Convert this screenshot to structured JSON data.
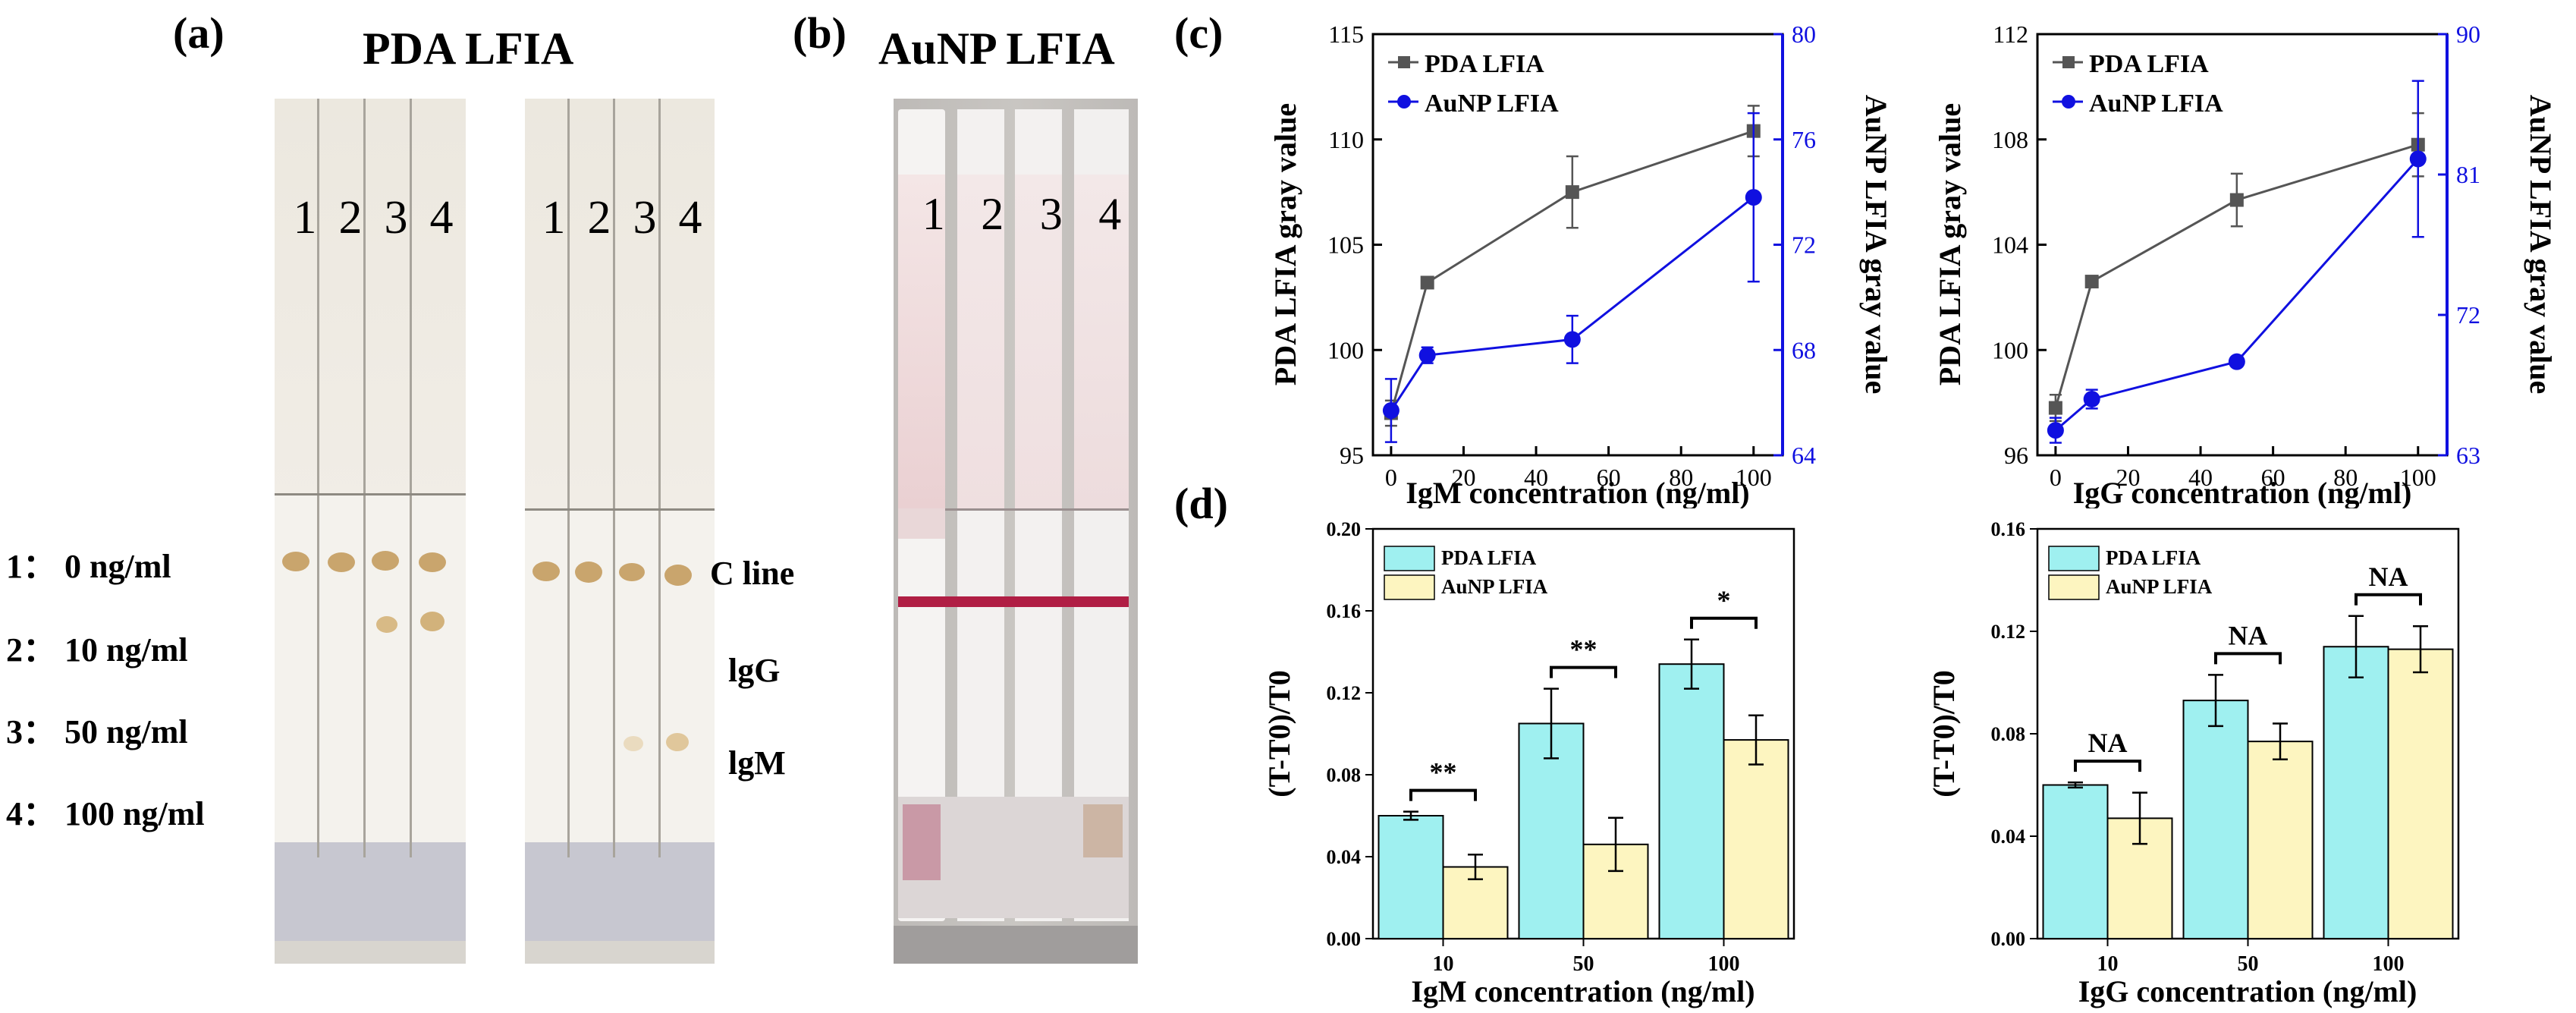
{
  "panel_a": {
    "letter": "(a)",
    "title": "PDA LFIA",
    "strip_numbers_left": [
      "1",
      "2",
      "3",
      "4"
    ],
    "strip_numbers_right": [
      "1",
      "2",
      "3",
      "4"
    ],
    "conc_legend": [
      "1： 0 ng/ml",
      "2： 10 ng/ml",
      "3： 50 ng/ml",
      "4： 100 ng/ml"
    ],
    "line_labels": [
      "C line",
      "lgG",
      "lgM"
    ]
  },
  "panel_b": {
    "letter": "(b)",
    "title": "AuNP LFIA",
    "strip_numbers": [
      "1",
      "2",
      "3",
      "4"
    ]
  },
  "panel_c_letter": "(c)",
  "panel_d_letter": "(d)",
  "chart_data": [
    {
      "id": "c-igm",
      "type": "line",
      "xlabel": "IgM concentration (ng/ml)",
      "ylabel": "PDA LFIA gray value",
      "y2label": "AuNP LFIA gray value",
      "x": [
        0,
        10,
        50,
        100
      ],
      "xlim": [
        -5,
        108
      ],
      "xticks": [
        0,
        20,
        40,
        60,
        80,
        100
      ],
      "ylim": [
        95,
        115
      ],
      "yticks": [
        95,
        100,
        105,
        110,
        115
      ],
      "y2lim": [
        64,
        80
      ],
      "y2ticks": [
        64,
        68,
        72,
        76,
        80
      ],
      "legend": [
        "PDA LFIA",
        "AuNP LFIA"
      ],
      "series": [
        {
          "name": "PDA LFIA",
          "axis": "left",
          "color": "#555555",
          "marker": "square",
          "values": [
            97.0,
            103.2,
            107.5,
            110.4
          ],
          "errors": [
            0.6,
            0.2,
            1.7,
            1.2
          ]
        },
        {
          "name": "AuNP LFIA",
          "axis": "right",
          "color": "#1010e0",
          "marker": "circle",
          "values": [
            65.7,
            67.8,
            68.4,
            73.8
          ],
          "errors": [
            1.2,
            0.3,
            0.9,
            3.2
          ]
        }
      ]
    },
    {
      "id": "c-igg",
      "type": "line",
      "xlabel": "IgG concentration (ng/ml)",
      "ylabel": "PDA LFIA gray value",
      "y2label": "AuNP LFIA gray value",
      "x": [
        0,
        10,
        50,
        100
      ],
      "xlim": [
        -5,
        108
      ],
      "xticks": [
        0,
        20,
        40,
        60,
        80,
        100
      ],
      "ylim": [
        96,
        112
      ],
      "yticks": [
        96,
        100,
        104,
        108,
        112
      ],
      "y2lim": [
        63,
        90
      ],
      "y2ticks": [
        63,
        72,
        81,
        90
      ],
      "legend": [
        "PDA LFIA",
        "AuNP LFIA"
      ],
      "series": [
        {
          "name": "PDA LFIA",
          "axis": "left",
          "color": "#555555",
          "marker": "square",
          "values": [
            97.8,
            102.6,
            105.7,
            107.8
          ],
          "errors": [
            0.5,
            0.2,
            1.0,
            1.2
          ]
        },
        {
          "name": "AuNP LFIA",
          "axis": "right",
          "color": "#1010e0",
          "marker": "circle",
          "values": [
            64.6,
            66.6,
            69.0,
            82.0
          ],
          "errors": [
            0.8,
            0.6,
            0.3,
            5.0
          ]
        }
      ]
    },
    {
      "id": "d-igm",
      "type": "bar",
      "xlabel": "IgM concentration (ng/ml)",
      "ylabel": "(T-T0)/T0",
      "categories": [
        "10",
        "50",
        "100"
      ],
      "ylim": [
        0,
        0.2
      ],
      "yticks": [
        "0.00",
        "0.04",
        "0.08",
        "0.12",
        "0.16",
        "0.20"
      ],
      "legend": [
        "PDA LFIA",
        "AuNP LFIA"
      ],
      "series": [
        {
          "name": "PDA LFIA",
          "color": "#9ff0f0",
          "values": [
            0.06,
            0.105,
            0.134
          ],
          "errors": [
            0.002,
            0.017,
            0.012
          ]
        },
        {
          "name": "AuNP LFIA",
          "color": "#fdf5c0",
          "values": [
            0.035,
            0.046,
            0.097
          ],
          "errors": [
            0.006,
            0.013,
            0.012
          ]
        }
      ],
      "significance": [
        "**",
        "**",
        "*"
      ]
    },
    {
      "id": "d-igg",
      "type": "bar",
      "xlabel": "IgG concentration (ng/ml)",
      "ylabel": "(T-T0)/T0",
      "categories": [
        "10",
        "50",
        "100"
      ],
      "ylim": [
        0,
        0.16
      ],
      "yticks": [
        "0.00",
        "0.04",
        "0.08",
        "0.12",
        "0.16"
      ],
      "legend": [
        "PDA LFIA",
        "AuNP LFIA"
      ],
      "series": [
        {
          "name": "PDA LFIA",
          "color": "#9ff0f0",
          "values": [
            0.06,
            0.093,
            0.114
          ],
          "errors": [
            0.001,
            0.01,
            0.012
          ]
        },
        {
          "name": "AuNP LFIA",
          "color": "#fdf5c0",
          "values": [
            0.047,
            0.077,
            0.113
          ],
          "errors": [
            0.01,
            0.007,
            0.009
          ]
        }
      ],
      "significance": [
        "NA",
        "NA",
        "NA"
      ]
    }
  ]
}
